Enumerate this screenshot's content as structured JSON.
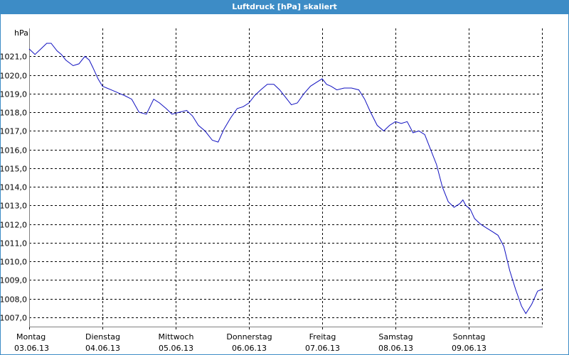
{
  "window": {
    "title": "Luftdruck [hPa] skaliert"
  },
  "colors": {
    "titlebar": "#3d8cc6",
    "line": "#1010c0",
    "grid": "#000000",
    "axis": "#808080"
  },
  "chart_data": {
    "type": "line",
    "title": "Luftdruck [hPa] skaliert",
    "ylabel": "hPa",
    "xlabel": "",
    "grid": true,
    "ylim": [
      1006.5,
      1022.5
    ],
    "xlim": [
      0,
      7.1
    ],
    "yticks": [
      1007,
      1008,
      1009,
      1010,
      1011,
      1012,
      1013,
      1014,
      1015,
      1016,
      1017,
      1018,
      1019,
      1020,
      1021
    ],
    "ytick_labels": [
      "1007,0",
      "1008,0",
      "1009,0",
      "1010,0",
      "1011,0",
      "1012,0",
      "1013,0",
      "1014,0",
      "1015,0",
      "1016,0",
      "1017,0",
      "1018,0",
      "1019,0",
      "1020,0",
      "1021,0"
    ],
    "xticks": [
      {
        "day": "Montag",
        "date": "03.06.13"
      },
      {
        "day": "Dienstag",
        "date": "04.06.13"
      },
      {
        "day": "Mittwoch",
        "date": "05.06.13"
      },
      {
        "day": "Donnerstag",
        "date": "06.06.13"
      },
      {
        "day": "Freitag",
        "date": "07.06.13"
      },
      {
        "day": "Samstag",
        "date": "08.06.13"
      },
      {
        "day": "Sonntag",
        "date": "09.06.13"
      }
    ],
    "series": [
      {
        "x": [
          0,
          0.08,
          0.16,
          0.24,
          0.3,
          0.38,
          0.44,
          0.5,
          0.6,
          0.68,
          0.76,
          0.82,
          0.87,
          0.94,
          1.0,
          1.06,
          1.12,
          1.18,
          1.24,
          1.3,
          1.4,
          1.5,
          1.6,
          1.7,
          1.78,
          1.87,
          1.95,
          2.05,
          2.15,
          2.23,
          2.31,
          2.4,
          2.5,
          2.58,
          2.66,
          2.75,
          2.84,
          2.92,
          3.0,
          3.08,
          3.16,
          3.25,
          3.34,
          3.42,
          3.5,
          3.58,
          3.66,
          3.75,
          3.84,
          3.92,
          4.0,
          4.06,
          4.12,
          4.2,
          4.3,
          4.4,
          4.5,
          4.58,
          4.66,
          4.75,
          4.84,
          4.92,
          5.0,
          5.08,
          5.16,
          5.24,
          5.32,
          5.4,
          5.48,
          5.56,
          5.64,
          5.72,
          5.8,
          5.88,
          5.92,
          5.96,
          6.02,
          6.08,
          6.16,
          6.24,
          6.32,
          6.4,
          6.48,
          6.56,
          6.64,
          6.72,
          6.78,
          6.86,
          6.94,
          7.0
        ],
        "y": [
          1021.4,
          1021.1,
          1021.4,
          1021.7,
          1021.7,
          1021.3,
          1021.1,
          1020.8,
          1020.5,
          1020.6,
          1021.0,
          1020.8,
          1020.4,
          1019.8,
          1019.4,
          1019.3,
          1019.2,
          1019.1,
          1019.0,
          1018.9,
          1018.7,
          1018.0,
          1017.9,
          1018.7,
          1018.5,
          1018.2,
          1017.9,
          1018.0,
          1018.1,
          1017.8,
          1017.3,
          1017.0,
          1016.5,
          1016.4,
          1017.1,
          1017.7,
          1018.2,
          1018.3,
          1018.5,
          1018.9,
          1019.2,
          1019.5,
          1019.5,
          1019.2,
          1018.8,
          1018.4,
          1018.5,
          1019.0,
          1019.4,
          1019.6,
          1019.8,
          1019.5,
          1019.4,
          1019.2,
          1019.3,
          1019.3,
          1019.2,
          1018.7,
          1018.0,
          1017.3,
          1017.0,
          1017.3,
          1017.5,
          1017.4,
          1017.5,
          1016.9,
          1017.0,
          1016.8,
          1016.0,
          1015.2,
          1014.0,
          1013.2,
          1012.9,
          1013.1,
          1013.3,
          1013.0,
          1012.8,
          1012.3,
          1012.0,
          1011.8,
          1011.6,
          1011.4,
          1010.8,
          1009.5,
          1008.5,
          1007.6,
          1007.2,
          1007.7,
          1008.4,
          1008.5
        ]
      }
    ]
  }
}
